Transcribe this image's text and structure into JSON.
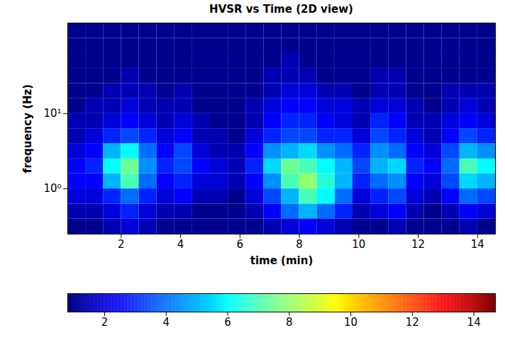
{
  "chart_data": {
    "type": "heatmap",
    "title": "HVSR vs Time (2D view)",
    "x_label": "time (min)",
    "y_label": "frequency (Hz)",
    "xlim": [
      0.2,
      14.6
    ],
    "xticks": [
      2,
      4,
      6,
      8,
      10,
      12,
      14
    ],
    "ylim": [
      0.25,
      160
    ],
    "yticks": [
      {
        "value": 1,
        "label": "10⁰"
      },
      {
        "value": 10,
        "label": "10¹"
      }
    ],
    "log": "y",
    "grid": false,
    "color": "jet",
    "time_edges": [
      0.2,
      0.8,
      1.4,
      2.0,
      2.6,
      3.2,
      3.8,
      4.4,
      5.0,
      5.6,
      6.2,
      6.8,
      7.4,
      8.0,
      8.6,
      9.2,
      9.8,
      10.4,
      11.0,
      11.6,
      12.2,
      12.8,
      13.4,
      14.0,
      14.6
    ],
    "frequency_edges": [
      0.25,
      0.4,
      0.63,
      1,
      1.6,
      2.5,
      4,
      6.3,
      10,
      16,
      25,
      40,
      63,
      100,
      160
    ],
    "values": [
      [
        1,
        1,
        1.5,
        2,
        1.5,
        1,
        1,
        1,
        1,
        1,
        1,
        1.5,
        2,
        2.5,
        2,
        1.5,
        1,
        1,
        1.5,
        1,
        1,
        1,
        1.5,
        1
      ],
      [
        1.5,
        1.5,
        2,
        3,
        2,
        1.5,
        1.5,
        1,
        1,
        1,
        1.5,
        2.5,
        4,
        5,
        4,
        3,
        1.5,
        2,
        2.5,
        1.5,
        1,
        1.5,
        2.5,
        2
      ],
      [
        2,
        2,
        3,
        4,
        3,
        2,
        2.5,
        1.5,
        1.5,
        1,
        2,
        3.5,
        5,
        7,
        6,
        4,
        2,
        3,
        3.5,
        2,
        1.5,
        2.5,
        4,
        3.5
      ],
      [
        2.5,
        2.5,
        5,
        7,
        4,
        2.5,
        3,
        2,
        2,
        1.5,
        2.5,
        4.5,
        7,
        8,
        6.5,
        5,
        3,
        4,
        4.5,
        2.5,
        2,
        3.5,
        5.5,
        5
      ],
      [
        2.5,
        3,
        6,
        7.5,
        4.5,
        3,
        3.5,
        2.5,
        2,
        1.5,
        3,
        5.5,
        7.5,
        7,
        6,
        5,
        3.5,
        5,
        5.5,
        3,
        2.5,
        4,
        7,
        6
      ],
      [
        2,
        2.5,
        5,
        6,
        4,
        2.5,
        3.5,
        2,
        1.5,
        1.5,
        2.5,
        4.5,
        5,
        5.5,
        4.5,
        4,
        3,
        4.5,
        4,
        2.5,
        2,
        3.5,
        5,
        4.5
      ],
      [
        1.5,
        2,
        3,
        3.5,
        3,
        2,
        2.5,
        1.5,
        1.5,
        1,
        2,
        3,
        3.5,
        3.5,
        3,
        3,
        2,
        3.5,
        3,
        2,
        1.5,
        2.5,
        3.5,
        3
      ],
      [
        1.5,
        1.5,
        2,
        2.5,
        2,
        1.5,
        2,
        1.5,
        1,
        1,
        1.5,
        2.5,
        3,
        3,
        2.5,
        2,
        1.5,
        3,
        2.5,
        1.5,
        1.5,
        2,
        2.5,
        2
      ],
      [
        1,
        1.5,
        1.5,
        2,
        1.5,
        1.5,
        1.5,
        1,
        1,
        1,
        1.5,
        2,
        2.5,
        2.5,
        2,
        2,
        1.5,
        2,
        2,
        1.5,
        1,
        1.5,
        2,
        1.5
      ],
      [
        1,
        1,
        1.5,
        1.5,
        1.5,
        1,
        1.5,
        1,
        1,
        1,
        1,
        1.5,
        2,
        2,
        1.5,
        1.5,
        1,
        1.5,
        1.5,
        1,
        1,
        1.5,
        1.5,
        1.5
      ],
      [
        1,
        1,
        1,
        1.5,
        1,
        1,
        1,
        1,
        1,
        1,
        1,
        1.5,
        1.5,
        1.5,
        1,
        1,
        1,
        1.5,
        1.5,
        1,
        1,
        1,
        1,
        1
      ],
      [
        1,
        1,
        1,
        1,
        1,
        1,
        1,
        1,
        1,
        1,
        1,
        1,
        1.5,
        1,
        1,
        1,
        1,
        1,
        1,
        1,
        1,
        1,
        1,
        1
      ],
      [
        1,
        1,
        1,
        1,
        1,
        1,
        1,
        1,
        1,
        1,
        1,
        1,
        1,
        1,
        1,
        1,
        1,
        1,
        1,
        1,
        1,
        1,
        1,
        1
      ],
      [
        1,
        1,
        1,
        1,
        1,
        1,
        1,
        1,
        1,
        1,
        1,
        1,
        1,
        1,
        1,
        1,
        1,
        1,
        1,
        1,
        1,
        1,
        1,
        1
      ]
    ],
    "colorbar_range": [
      0.8,
      14.7
    ],
    "colorbar_ticks": [
      2,
      4,
      6,
      8,
      10,
      12,
      14
    ]
  }
}
